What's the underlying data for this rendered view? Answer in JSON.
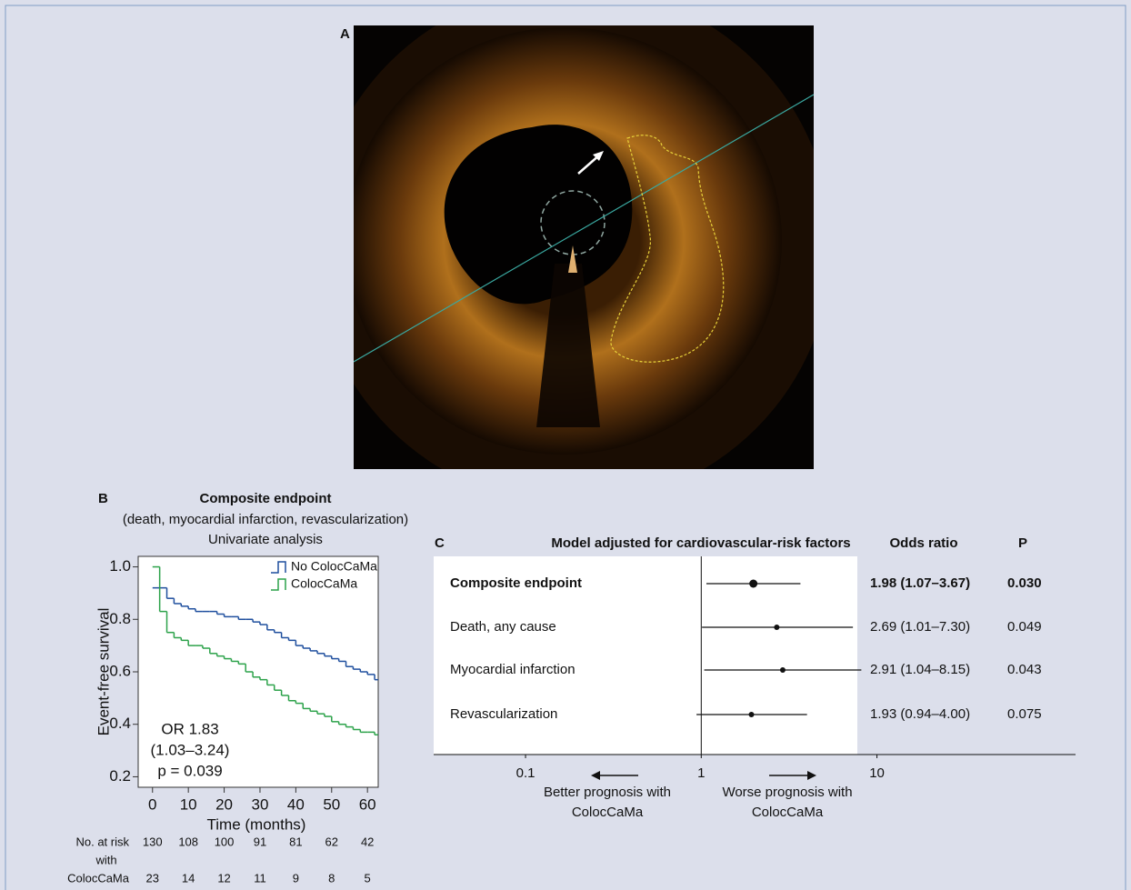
{
  "panel_a": {
    "label": "A"
  },
  "chart_data": [
    {
      "type": "line",
      "label": "B",
      "title": "Composite endpoint",
      "subtitle": [
        "(death, myocardial infarction, revascularization)",
        "Univariate analysis"
      ],
      "x_label": "Time (months)",
      "y_label": "Event-free survival",
      "step": true,
      "legend": "top-right",
      "x": [
        0,
        2,
        4,
        6,
        8,
        10,
        12,
        14,
        16,
        18,
        20,
        22,
        24,
        26,
        28,
        30,
        32,
        34,
        36,
        38,
        40,
        42,
        44,
        46,
        48,
        50,
        52,
        54,
        56,
        58,
        60,
        62
      ],
      "series": [
        {
          "name": "No ColocCaMa",
          "color": "#1f4f9e",
          "values": [
            0.92,
            0.92,
            0.88,
            0.86,
            0.85,
            0.84,
            0.83,
            0.83,
            0.83,
            0.82,
            0.81,
            0.81,
            0.8,
            0.8,
            0.79,
            0.78,
            0.76,
            0.75,
            0.73,
            0.72,
            0.7,
            0.69,
            0.68,
            0.67,
            0.66,
            0.65,
            0.64,
            0.62,
            0.61,
            0.6,
            0.59,
            0.57
          ]
        },
        {
          "name": "ColocCaMa",
          "color": "#2ca24a",
          "values": [
            1.0,
            0.83,
            0.75,
            0.73,
            0.72,
            0.7,
            0.7,
            0.69,
            0.67,
            0.66,
            0.65,
            0.64,
            0.63,
            0.6,
            0.58,
            0.57,
            0.55,
            0.53,
            0.51,
            0.49,
            0.48,
            0.46,
            0.45,
            0.44,
            0.43,
            0.41,
            0.4,
            0.39,
            0.38,
            0.37,
            0.37,
            0.36
          ]
        }
      ],
      "xlim": [
        -4,
        63
      ],
      "xticks": [
        0,
        10,
        20,
        30,
        40,
        50,
        60
      ],
      "ylim": [
        0.16,
        1.04
      ],
      "yticks": [
        0.2,
        0.4,
        0.6,
        0.8,
        {
          "value": 1,
          "label": "1.0"
        }
      ],
      "annotations": [
        "OR 1.83",
        "(1.03–3.24)",
        "p = 0.039"
      ],
      "risk_table": {
        "label_lines": [
          "No. at risk",
          "with",
          "ColocCaMa"
        ],
        "rows": [
          [
            130,
            108,
            100,
            91,
            81,
            62,
            42
          ],
          [
            23,
            14,
            12,
            11,
            9,
            8,
            5
          ]
        ]
      }
    },
    {
      "type": "forest",
      "label": "C",
      "title": "Model adjusted for cardiovascular-risk factors",
      "columns": [
        "Odds ratio",
        "P"
      ],
      "categories": [
        "Composite endpoint",
        "Death, any cause",
        "Myocardial infarction",
        "Revascularization"
      ],
      "bold": [
        true,
        false,
        false,
        false
      ],
      "values": [
        1.98,
        2.69,
        2.91,
        1.93
      ],
      "lower": [
        1.07,
        1.01,
        1.04,
        0.94
      ],
      "upper": [
        3.67,
        7.3,
        8.15,
        4.0
      ],
      "value_labels": [
        "1.98 (1.07–3.67)",
        "2.69 (1.01–7.30)",
        "2.91 (1.04–8.15)",
        "1.93 (0.94–4.00)"
      ],
      "p_values": [
        "0.030",
        "0.049",
        "0.043",
        "0.075"
      ],
      "log_x": true,
      "xlim": [
        0.03,
        135
      ],
      "xticks": [
        0.1,
        1,
        10
      ],
      "reference": 1,
      "direction_labels": [
        [
          "Better prognosis with",
          "ColocCaMa"
        ],
        [
          "Worse prognosis with",
          "ColocCaMa"
        ]
      ]
    }
  ]
}
